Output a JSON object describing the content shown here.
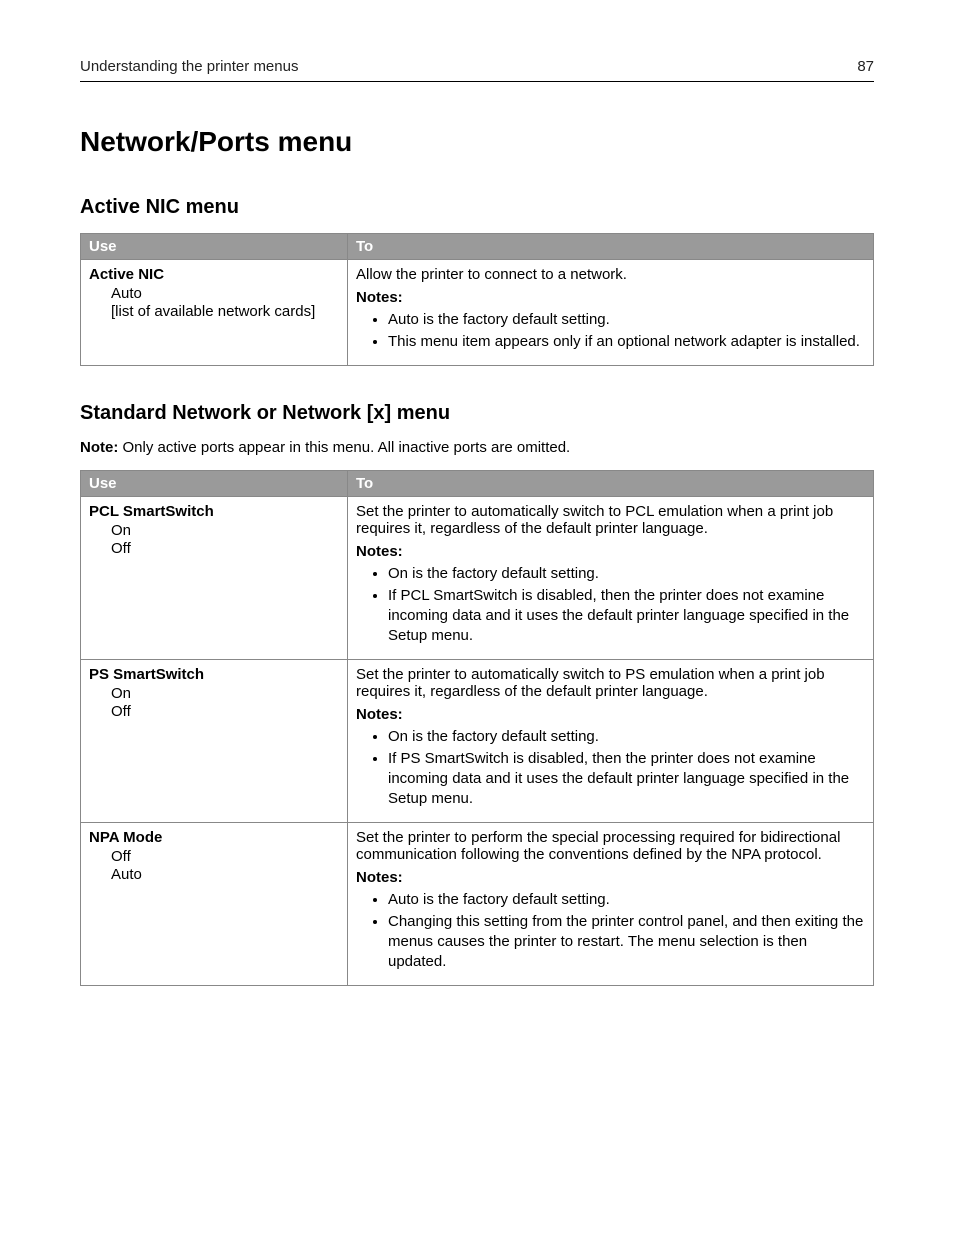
{
  "header": {
    "section": "Understanding the printer menus",
    "page_number": "87"
  },
  "main_title": "Network/Ports menu",
  "columns": {
    "use": "Use",
    "to": "To"
  },
  "notes_label": "Notes:",
  "section1": {
    "title": "Active NIC menu",
    "rows": [
      {
        "use_title": "Active NIC",
        "use_opts": [
          "Auto",
          "[list of available network cards]"
        ],
        "to_desc": "Allow the printer to connect to a network.",
        "notes": [
          "Auto is the factory default setting.",
          "This menu item appears only if an optional network adapter is installed."
        ]
      }
    ]
  },
  "section2": {
    "title": "Standard Network or Network [x] menu",
    "note_prefix": "Note:",
    "note_text": " Only active ports appear in this menu. All inactive ports are omitted.",
    "rows": [
      {
        "use_title": "PCL SmartSwitch",
        "use_opts": [
          "On",
          "Off"
        ],
        "to_desc": "Set the printer to automatically switch to PCL emulation when a print job requires it, regardless of the default printer language.",
        "notes": [
          "On is the factory default setting.",
          "If PCL SmartSwitch is disabled, then the printer does not examine incoming data and it uses the default printer language specified in the Setup menu."
        ]
      },
      {
        "use_title": "PS SmartSwitch",
        "use_opts": [
          "On",
          "Off"
        ],
        "to_desc": "Set the printer to automatically switch to PS emulation when a print job requires it, regardless of the default printer language.",
        "notes": [
          "On is the factory default setting.",
          "If PS SmartSwitch is disabled, then the printer does not examine incoming data and it uses the default printer language specified in the Setup menu."
        ]
      },
      {
        "use_title": "NPA Mode",
        "use_opts": [
          "Off",
          "Auto"
        ],
        "to_desc": "Set the printer to perform the special processing required for bidirectional communication following the conventions defined by the NPA protocol.",
        "notes": [
          "Auto is the factory default setting.",
          "Changing this setting from the printer control panel, and then exiting the menus causes the printer to restart. The menu selection is then updated."
        ]
      }
    ]
  },
  "style": {
    "header_bg": "#9a9a9a",
    "header_fg": "#ffffff",
    "border_color": "#888888",
    "body_font_size": 15,
    "title_font_size": 28,
    "subtitle_font_size": 20
  }
}
